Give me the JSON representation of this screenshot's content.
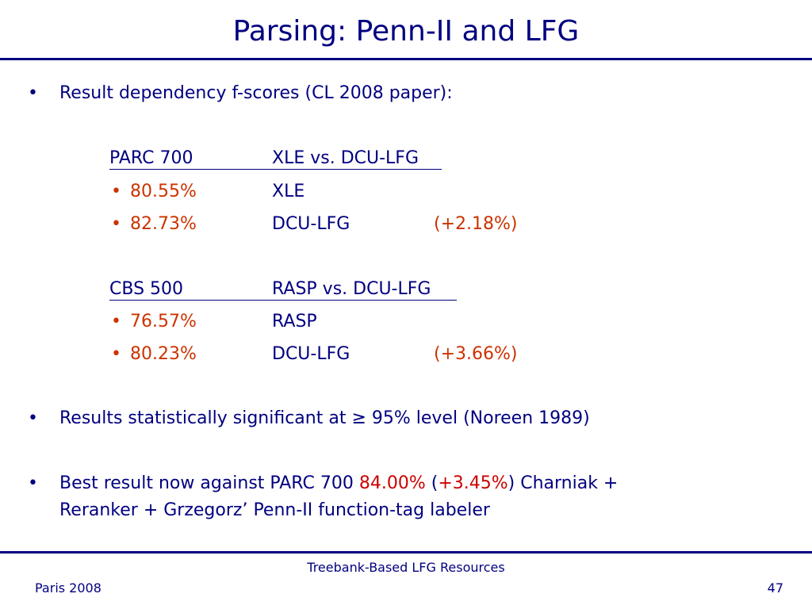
{
  "slide": {
    "title": "Parsing: Penn-II and LFG",
    "bullet1": "Result dependency f-scores (CL 2008 paper):",
    "parc": {
      "header_left": "PARC 700",
      "header_right": "XLE vs. DCU-LFG",
      "rows": [
        {
          "marker": "•",
          "score": "80.55%",
          "system": "XLE",
          "delta": ""
        },
        {
          "marker": "•",
          "score": "82.73%",
          "system": "DCU-LFG",
          "delta": "(+2.18%)"
        }
      ]
    },
    "cbs": {
      "header_left": "CBS 500",
      "header_right": "RASP vs. DCU-LFG",
      "rows": [
        {
          "marker": "•",
          "score": "76.57%",
          "system": "RASP",
          "delta": ""
        },
        {
          "marker": "•",
          "score": "80.23%",
          "system": "DCU-LFG",
          "delta": "(+3.66%)"
        }
      ]
    },
    "bullet2": "Results statistically significant at ≥ 95% level (Noreen 1989)",
    "bullet3": {
      "pre": "Best result now against PARC 700 ",
      "score": "84.00%",
      "open": " (",
      "delta": "+3.45%",
      "post": ") Charniak +",
      "line2": "Reranker + Grzegorz’ Penn-II function-tag labeler"
    },
    "bullet_marker": "•"
  },
  "footer": {
    "center": "Treebank-Based LFG Resources",
    "left": "Paris  2008",
    "page": "47"
  },
  "colors": {
    "text": "#000080",
    "score": "#cc3300",
    "highlight": "#cc0000"
  }
}
